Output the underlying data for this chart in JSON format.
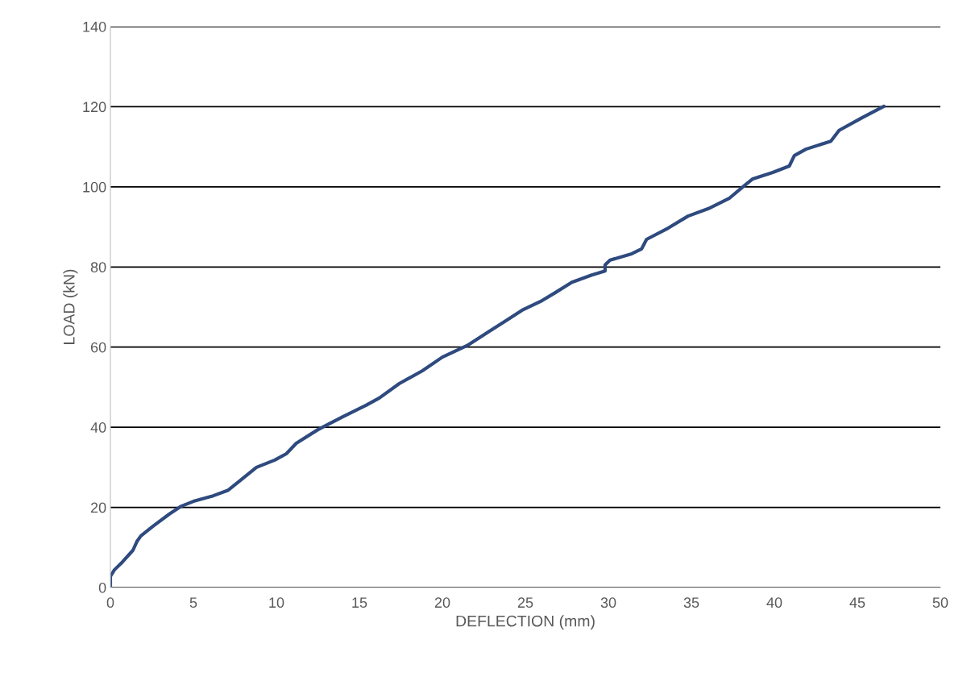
{
  "chart_data": {
    "type": "line",
    "xlabel": "DEFLECTION (mm)",
    "ylabel": "LOAD (kN)",
    "xlim": [
      0,
      50
    ],
    "xticks": [
      0,
      5,
      10,
      15,
      20,
      25,
      30,
      35,
      40,
      45,
      50
    ],
    "ylim": [
      0,
      140
    ],
    "yticks": [
      0,
      20,
      40,
      60,
      80,
      100,
      120,
      140
    ],
    "grid": "y",
    "marker": "none",
    "line_style": "solid",
    "series": [
      {
        "color": "#2e4a7e",
        "x": [
          0,
          0,
          0.24,
          0.73,
          1.36,
          1.6,
          1.84,
          2.57,
          3.54,
          4.27,
          5.0,
          6.2,
          7.1,
          7.9,
          8.8,
          9.9,
          10.6,
          11.2,
          12.5,
          14.0,
          15.4,
          16.2,
          17.4,
          18.8,
          20.0,
          21.5,
          22.7,
          23.9,
          24.8,
          26.0,
          26.8,
          27.8,
          29.0,
          29.8,
          29.8,
          30.1,
          31.4,
          32.0,
          32.3,
          33.6,
          34.8,
          36.1,
          37.3,
          38.1,
          38.7,
          39.9,
          40.9,
          41.2,
          41.9,
          43.4,
          43.9,
          45.3,
          46.6
        ],
        "values": [
          0,
          2.8,
          4.4,
          6.4,
          9.3,
          11.5,
          12.9,
          15.3,
          18.3,
          20.3,
          21.5,
          22.9,
          24.3,
          27,
          30,
          31.8,
          33.4,
          36,
          39.4,
          42.6,
          45.5,
          47.3,
          50.9,
          54.1,
          57.5,
          60.4,
          63.6,
          66.8,
          69.2,
          71.6,
          73.6,
          76.2,
          78,
          79,
          80.5,
          81.7,
          83.3,
          84.5,
          86.9,
          89.7,
          92.7,
          94.7,
          97.2,
          100,
          102,
          103.6,
          105.2,
          107.8,
          109.4,
          111.4,
          114.1,
          117.3,
          120.1
        ]
      }
    ]
  }
}
